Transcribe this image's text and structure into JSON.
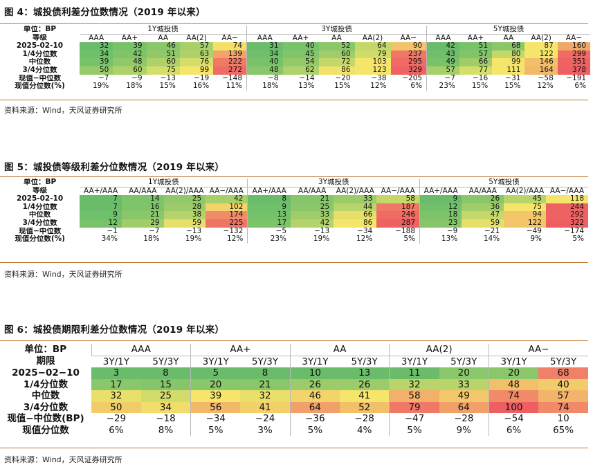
{
  "figure4": {
    "title": "图 4：城投债利差分位数情况（2019 年以来）",
    "unit_label": "单位：BP",
    "grade_label": "等级",
    "groups": [
      "1Y城投债",
      "3Y城投债",
      "5Y城投债"
    ],
    "grades": [
      "AAA",
      "AA+",
      "AA",
      "AA(2)",
      "AA−",
      "AAA",
      "AA+",
      "AA",
      "AA(2)",
      "AA−",
      "AAA",
      "AA+",
      "AA",
      "AA(2)",
      "AA−"
    ],
    "rows": [
      {
        "label": "2025-02-10",
        "cells": [
          "32",
          "39",
          "46",
          "57",
          "74",
          "31",
          "40",
          "52",
          "64",
          "90",
          "42",
          "51",
          "68",
          "87",
          "160"
        ]
      },
      {
        "label": "1/4分位数",
        "cells": [
          "34",
          "42",
          "51",
          "63",
          "139",
          "34",
          "45",
          "60",
          "79",
          "237",
          "43",
          "57",
          "80",
          "122",
          "299"
        ]
      },
      {
        "label": "中位数",
        "cells": [
          "39",
          "48",
          "60",
          "76",
          "222",
          "40",
          "54",
          "72",
          "103",
          "295",
          "49",
          "66",
          "99",
          "146",
          "351"
        ]
      },
      {
        "label": "3/4分位数",
        "cells": [
          "50",
          "60",
          "75",
          "99",
          "272",
          "48",
          "62",
          "86",
          "123",
          "329",
          "57",
          "77",
          "111",
          "164",
          "378"
        ]
      },
      {
        "label": "现值−中位数",
        "cells": [
          "−7",
          "−9",
          "−13",
          "−19",
          "−148",
          "−8",
          "−14",
          "−20",
          "−38",
          "−205",
          "−7",
          "−16",
          "−31",
          "−58",
          "−191"
        ]
      },
      {
        "label": "现值分位数(%)",
        "cells": [
          "19%",
          "18%",
          "15%",
          "16%",
          "11%",
          "18%",
          "13%",
          "15%",
          "12%",
          "6%",
          "23%",
          "15%",
          "15%",
          "12%",
          "6%"
        ]
      }
    ],
    "colors": [
      [
        "#6abc6a",
        "#78c26a",
        "#8ac66a",
        "#a8d06a",
        "#f3e06a",
        "#6abc6a",
        "#78c26a",
        "#8ac66a",
        "#c4d86a",
        "#f2c36a",
        "#6abc6a",
        "#78c26a",
        "#8ac66a",
        "#f6e56b",
        "#f0a86a"
      ],
      [
        "#6ec06a",
        "#80c46a",
        "#92c86a",
        "#aed16a",
        "#f3a36a",
        "#6ec06a",
        "#82c46a",
        "#a0cc6a",
        "#cfdc6a",
        "#f07666",
        "#6ec06a",
        "#82c46a",
        "#c4d86a",
        "#f6e56b",
        "#ef6b64"
      ],
      [
        "#78c26a",
        "#90c86a",
        "#aed16a",
        "#d6de6a",
        "#f07a66",
        "#78c26a",
        "#94c96a",
        "#c4d86a",
        "#f6e56b",
        "#ef6b64",
        "#78c26a",
        "#a0cc6a",
        "#f6e56b",
        "#f3c06a",
        "#ee6263"
      ],
      [
        "#98ca6a",
        "#aed16a",
        "#d6de6a",
        "#f6e56b",
        "#ef6b64",
        "#8ac66a",
        "#b0d26a",
        "#f0e26a",
        "#f6e56b",
        "#ee6263",
        "#a8d06a",
        "#d6de6a",
        "#f6e56b",
        "#f3b86a",
        "#ee5e62"
      ]
    ],
    "source": "资料来源：Wind，天风证券研究所"
  },
  "figure5": {
    "title": "图 5：城投债等级利差分位数情况（2019 年以来）",
    "unit_label": "单位：BP",
    "grade_label": "等级",
    "groups": [
      "1Y城投债",
      "3Y城投债",
      "5Y城投债"
    ],
    "grades": [
      "AA+/AAA",
      "AA/AAA",
      "AA(2)/AAA",
      "AA−/AAA",
      "AA+/AAA",
      "AA/AAA",
      "AA(2)/AAA",
      "AA−/AAA",
      "AA+/AAA",
      "AA/AAA",
      "AA(2)/AAA",
      "AA−/AAA"
    ],
    "rows": [
      {
        "label": "2025-02-10",
        "cells": [
          "7",
          "14",
          "25",
          "42",
          "8",
          "21",
          "33",
          "58",
          "9",
          "26",
          "45",
          "118"
        ]
      },
      {
        "label": "1/4分位数",
        "cells": [
          "7",
          "16",
          "28",
          "102",
          "9",
          "25",
          "44",
          "187",
          "12",
          "36",
          "75",
          "244"
        ]
      },
      {
        "label": "中位数",
        "cells": [
          "9",
          "21",
          "38",
          "174",
          "13",
          "33",
          "66",
          "246",
          "18",
          "47",
          "94",
          "292"
        ]
      },
      {
        "label": "3/4分位数",
        "cells": [
          "12",
          "29",
          "59",
          "225",
          "17",
          "42",
          "86",
          "287",
          "23",
          "59",
          "122",
          "322"
        ]
      },
      {
        "label": "现值−中位数",
        "cells": [
          "−1",
          "−7",
          "−13",
          "−132",
          "−5",
          "−13",
          "−34",
          "−188",
          "−9",
          "−21",
          "−49",
          "−174"
        ]
      },
      {
        "label": "现值分位数(%)",
        "cells": [
          "34%",
          "18%",
          "19%",
          "12%",
          "23%",
          "19%",
          "12%",
          "5%",
          "13%",
          "14%",
          "9%",
          "5%"
        ]
      }
    ],
    "colors": [
      [
        "#6abc6a",
        "#7cc36a",
        "#92c86a",
        "#a8d06a",
        "#6abc6a",
        "#86c56a",
        "#9ccb6a",
        "#c4d86a",
        "#6abc6a",
        "#8ac66a",
        "#b8d46a",
        "#f6e56b"
      ],
      [
        "#6abc6a",
        "#80c46a",
        "#9ccb6a",
        "#f3d46a",
        "#6ec06a",
        "#8ac66a",
        "#b8d46a",
        "#ef7866",
        "#72c06a",
        "#a0cc6a",
        "#f6e56b",
        "#ee6263"
      ],
      [
        "#6ec06a",
        "#8ac66a",
        "#b4d36a",
        "#f08c68",
        "#76c26a",
        "#a0cc6a",
        "#e6e06a",
        "#ef6b64",
        "#7cc36a",
        "#c4d86a",
        "#f3c66a",
        "#ee6263"
      ],
      [
        "#78c26a",
        "#a0cc6a",
        "#e6e06a",
        "#ef7466",
        "#7cc36a",
        "#b4d36a",
        "#f6e56b",
        "#ee6263",
        "#86c56a",
        "#e6e06a",
        "#f3c66a",
        "#ee5e62"
      ]
    ],
    "source": "资料来源：Wind，天风证券研究所"
  },
  "figure6": {
    "title": "图 6：城投债期限利差分位数情况（2019 年以来）",
    "unit_label": "单位：BP",
    "term_label": "期限",
    "groups": [
      "AAA",
      "AA+",
      "AA",
      "AA(2)",
      "AA−"
    ],
    "terms": [
      "3Y/1Y",
      "5Y/3Y",
      "3Y/1Y",
      "5Y/3Y",
      "3Y/1Y",
      "5Y/3Y",
      "3Y/1Y",
      "5Y/3Y",
      "3Y/1Y",
      "5Y/3Y"
    ],
    "rows": [
      {
        "label": "2025−02−10",
        "cells": [
          "3",
          "8",
          "5",
          "8",
          "10",
          "13",
          "11",
          "20",
          "20",
          "68"
        ]
      },
      {
        "label": "1/4分位数",
        "cells": [
          "17",
          "15",
          "20",
          "21",
          "26",
          "26",
          "32",
          "33",
          "48",
          "40"
        ]
      },
      {
        "label": "中位数",
        "cells": [
          "32",
          "25",
          "39",
          "32",
          "46",
          "41",
          "58",
          "49",
          "74",
          "57"
        ]
      },
      {
        "label": "3/4分位数",
        "cells": [
          "50",
          "34",
          "56",
          "41",
          "64",
          "52",
          "79",
          "64",
          "100",
          "74"
        ]
      },
      {
        "label": "现值−中位数(BP)",
        "cells": [
          "−29",
          "−18",
          "−34",
          "−24",
          "−36",
          "−28",
          "−47",
          "−28",
          "−54",
          "10"
        ]
      },
      {
        "label": "现值分位数",
        "cells": [
          "6%",
          "8%",
          "5%",
          "3%",
          "5%",
          "4%",
          "5%",
          "9%",
          "6%",
          "65%"
        ]
      }
    ],
    "colors": [
      [
        "#6abc6a",
        "#6abc6a",
        "#6abc6a",
        "#6abc6a",
        "#6abc6a",
        "#6abc6a",
        "#6abc6a",
        "#8ac66a",
        "#8ac66a",
        "#f08068"
      ],
      [
        "#8ac66a",
        "#86c56a",
        "#8ac66a",
        "#8ac66a",
        "#9ccb6a",
        "#9ccb6a",
        "#b8d46a",
        "#b8d46a",
        "#f3c06a",
        "#f2cc6a"
      ],
      [
        "#e8e06a",
        "#d2dc6a",
        "#f6e56b",
        "#e8e06a",
        "#f3d46a",
        "#f6e56b",
        "#f3b06a",
        "#f3c86a",
        "#f08a68",
        "#f2b46a"
      ],
      [
        "#f3cc6a",
        "#f2dc6a",
        "#f3b86a",
        "#f3d06a",
        "#f2a06a",
        "#f3c06a",
        "#f07866",
        "#f2a06a",
        "#ee5e62",
        "#f08a68"
      ]
    ],
    "source": "资料来源：Wind，天风证券研究所"
  }
}
